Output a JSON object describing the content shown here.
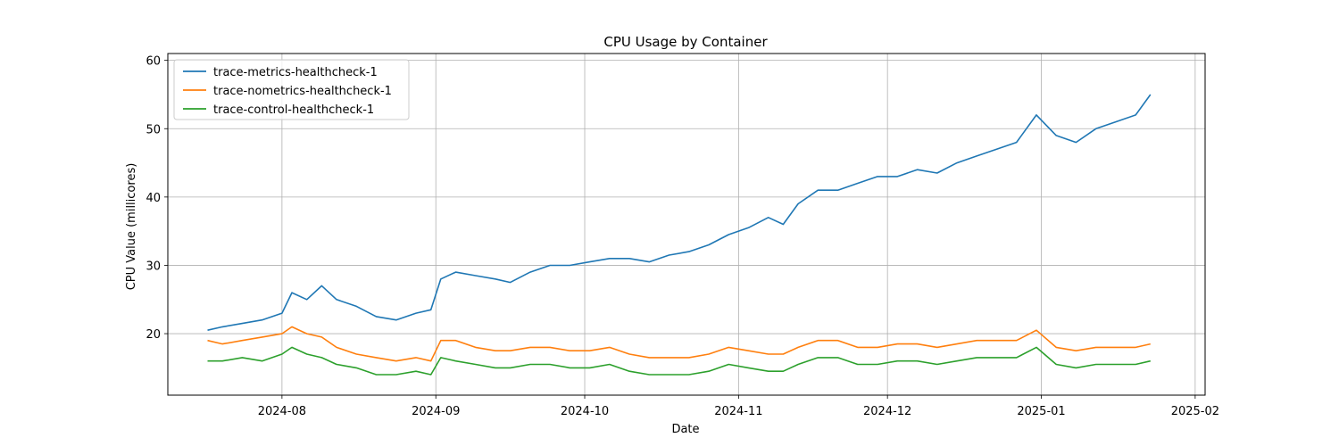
{
  "chart_data": {
    "type": "line",
    "title": "CPU Usage by Container",
    "xlabel": "Date",
    "ylabel": "CPU Value (millicores)",
    "grid": true,
    "legend_position": "top-left",
    "xlim": [
      "2024-07-09",
      "2025-02-03"
    ],
    "ylim": [
      11,
      61
    ],
    "x_ticks": [
      "2024-08",
      "2024-09",
      "2024-10",
      "2024-11",
      "2024-12",
      "2025-01",
      "2025-02"
    ],
    "y_ticks": [
      20,
      30,
      40,
      50,
      60
    ],
    "series": [
      {
        "name": "trace-metrics-healthcheck-1",
        "color": "#1f77b4",
        "x": [
          "2024-07-17",
          "2024-07-20",
          "2024-07-24",
          "2024-07-28",
          "2024-08-01",
          "2024-08-03",
          "2024-08-06",
          "2024-08-09",
          "2024-08-12",
          "2024-08-16",
          "2024-08-20",
          "2024-08-24",
          "2024-08-28",
          "2024-08-31",
          "2024-09-02",
          "2024-09-05",
          "2024-09-09",
          "2024-09-13",
          "2024-09-16",
          "2024-09-20",
          "2024-09-24",
          "2024-09-28",
          "2024-10-02",
          "2024-10-06",
          "2024-10-10",
          "2024-10-14",
          "2024-10-18",
          "2024-10-22",
          "2024-10-26",
          "2024-10-30",
          "2024-11-03",
          "2024-11-07",
          "2024-11-10",
          "2024-11-13",
          "2024-11-17",
          "2024-11-21",
          "2024-11-25",
          "2024-11-29",
          "2024-12-03",
          "2024-12-07",
          "2024-12-11",
          "2024-12-15",
          "2024-12-19",
          "2024-12-23",
          "2024-12-27",
          "2024-12-31",
          "2025-01-04",
          "2025-01-08",
          "2025-01-12",
          "2025-01-16",
          "2025-01-20",
          "2025-01-23"
        ],
        "y": [
          20.5,
          21,
          21.5,
          22,
          23,
          26,
          25,
          27,
          25,
          24,
          22.5,
          22,
          23,
          23.5,
          28,
          29,
          28.5,
          28,
          27.5,
          29,
          30,
          30,
          30.5,
          31,
          31,
          30.5,
          31.5,
          32,
          33,
          34.5,
          35.5,
          37,
          36,
          39,
          41,
          41,
          42,
          43,
          43,
          44,
          43.5,
          45,
          46,
          47,
          48,
          52,
          49,
          48,
          50,
          51,
          52,
          55
        ]
      },
      {
        "name": "trace-nometrics-healthcheck-1",
        "color": "#ff7f0e",
        "x": [
          "2024-07-17",
          "2024-07-20",
          "2024-07-24",
          "2024-07-28",
          "2024-08-01",
          "2024-08-03",
          "2024-08-06",
          "2024-08-09",
          "2024-08-12",
          "2024-08-16",
          "2024-08-20",
          "2024-08-24",
          "2024-08-28",
          "2024-08-31",
          "2024-09-02",
          "2024-09-05",
          "2024-09-09",
          "2024-09-13",
          "2024-09-16",
          "2024-09-20",
          "2024-09-24",
          "2024-09-28",
          "2024-10-02",
          "2024-10-06",
          "2024-10-10",
          "2024-10-14",
          "2024-10-18",
          "2024-10-22",
          "2024-10-26",
          "2024-10-30",
          "2024-11-03",
          "2024-11-07",
          "2024-11-10",
          "2024-11-13",
          "2024-11-17",
          "2024-11-21",
          "2024-11-25",
          "2024-11-29",
          "2024-12-03",
          "2024-12-07",
          "2024-12-11",
          "2024-12-15",
          "2024-12-19",
          "2024-12-23",
          "2024-12-27",
          "2024-12-31",
          "2025-01-04",
          "2025-01-08",
          "2025-01-12",
          "2025-01-16",
          "2025-01-20",
          "2025-01-23"
        ],
        "y": [
          19,
          18.5,
          19,
          19.5,
          20,
          21,
          20,
          19.5,
          18,
          17,
          16.5,
          16,
          16.5,
          16,
          19,
          19,
          18,
          17.5,
          17.5,
          18,
          18,
          17.5,
          17.5,
          18,
          17,
          16.5,
          16.5,
          16.5,
          17,
          18,
          17.5,
          17,
          17,
          18,
          19,
          19,
          18,
          18,
          18.5,
          18.5,
          18,
          18.5,
          19,
          19,
          19,
          20.5,
          18,
          17.5,
          18,
          18,
          18,
          18.5
        ]
      },
      {
        "name": "trace-control-healthcheck-1",
        "color": "#2ca02c",
        "x": [
          "2024-07-17",
          "2024-07-20",
          "2024-07-24",
          "2024-07-28",
          "2024-08-01",
          "2024-08-03",
          "2024-08-06",
          "2024-08-09",
          "2024-08-12",
          "2024-08-16",
          "2024-08-20",
          "2024-08-24",
          "2024-08-28",
          "2024-08-31",
          "2024-09-02",
          "2024-09-05",
          "2024-09-09",
          "2024-09-13",
          "2024-09-16",
          "2024-09-20",
          "2024-09-24",
          "2024-09-28",
          "2024-10-02",
          "2024-10-06",
          "2024-10-10",
          "2024-10-14",
          "2024-10-18",
          "2024-10-22",
          "2024-10-26",
          "2024-10-30",
          "2024-11-03",
          "2024-11-07",
          "2024-11-10",
          "2024-11-13",
          "2024-11-17",
          "2024-11-21",
          "2024-11-25",
          "2024-11-29",
          "2024-12-03",
          "2024-12-07",
          "2024-12-11",
          "2024-12-15",
          "2024-12-19",
          "2024-12-23",
          "2024-12-27",
          "2024-12-31",
          "2025-01-04",
          "2025-01-08",
          "2025-01-12",
          "2025-01-16",
          "2025-01-20",
          "2025-01-23"
        ],
        "y": [
          16,
          16,
          16.5,
          16,
          17,
          18,
          17,
          16.5,
          15.5,
          15,
          14,
          14,
          14.5,
          14,
          16.5,
          16,
          15.5,
          15,
          15,
          15.5,
          15.5,
          15,
          15,
          15.5,
          14.5,
          14,
          14,
          14,
          14.5,
          15.5,
          15,
          14.5,
          14.5,
          15.5,
          16.5,
          16.5,
          15.5,
          15.5,
          16,
          16,
          15.5,
          16,
          16.5,
          16.5,
          16.5,
          18,
          15.5,
          15,
          15.5,
          15.5,
          15.5,
          16
        ]
      }
    ]
  }
}
